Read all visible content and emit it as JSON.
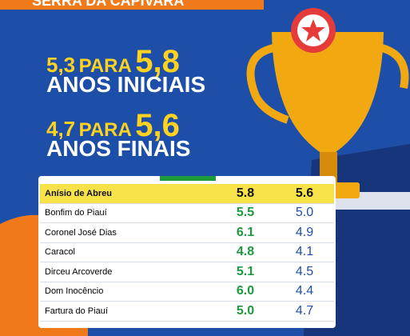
{
  "header": {
    "title": "SERRA DA CAPIVARA"
  },
  "headlines": [
    {
      "from": "5,3",
      "word": "PARA",
      "to": "5,8",
      "label": "ANOS INICIAIS"
    },
    {
      "from": "4,7",
      "word": "PARA",
      "to": "5,6",
      "label": "ANOS FINAIS"
    }
  ],
  "table": {
    "rows": [
      [
        "Anísio de Abreu",
        "5.8",
        "5.6"
      ],
      [
        "Bonfim do Piauí",
        "5.5",
        "5.0"
      ],
      [
        "Coronel José Dias",
        "6.1",
        "4.9"
      ],
      [
        "Caracol",
        "4.8",
        "4.1"
      ],
      [
        "Dirceu Arcoverde",
        "5.1",
        "4.5"
      ],
      [
        "Dom Inocêncio",
        "6.0",
        "4.4"
      ],
      [
        "Fartura do Piauí",
        "5.0",
        "4.7"
      ]
    ]
  }
}
